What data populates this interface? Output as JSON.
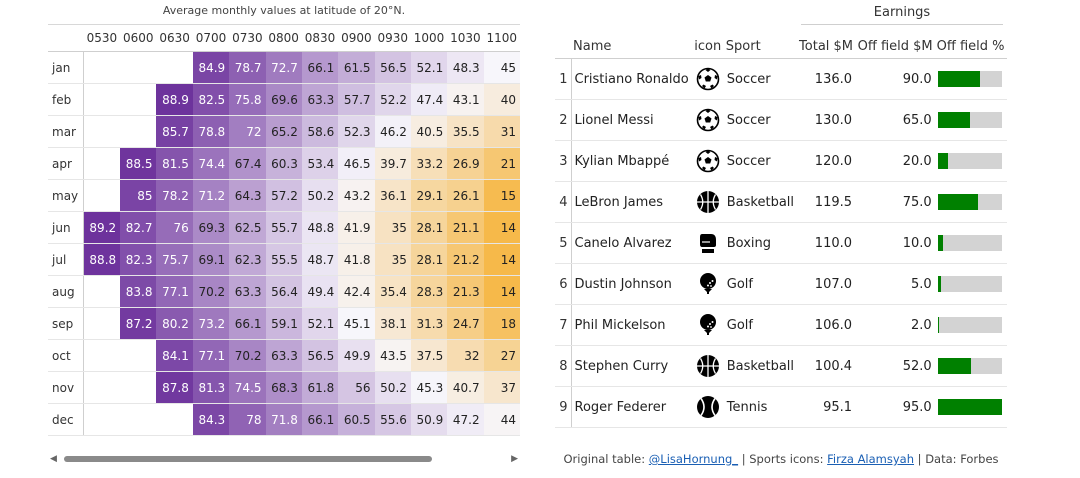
{
  "heatmap": {
    "title": "Average monthly values at latitude of 20°N.",
    "columns": [
      "0530",
      "0600",
      "0630",
      "0700",
      "0730",
      "0800",
      "0830",
      "0900",
      "0930",
      "1000",
      "1030",
      "1100"
    ],
    "rows": [
      {
        "month": "jan",
        "values": [
          null,
          null,
          null,
          84.9,
          78.7,
          72.7,
          66.1,
          61.5,
          56.5,
          52.1,
          48.3,
          45
        ]
      },
      {
        "month": "feb",
        "values": [
          null,
          null,
          88.9,
          82.5,
          75.8,
          69.6,
          63.3,
          57.7,
          52.2,
          47.4,
          43.1,
          40
        ]
      },
      {
        "month": "mar",
        "values": [
          null,
          null,
          85.7,
          78.8,
          72.0,
          65.2,
          58.6,
          52.3,
          46.2,
          40.5,
          35.5,
          31
        ]
      },
      {
        "month": "apr",
        "values": [
          null,
          88.5,
          81.5,
          74.4,
          67.4,
          60.3,
          53.4,
          46.5,
          39.7,
          33.2,
          26.9,
          21
        ]
      },
      {
        "month": "may",
        "values": [
          null,
          85.0,
          78.2,
          71.2,
          64.3,
          57.2,
          50.2,
          43.2,
          36.1,
          29.1,
          26.1,
          15
        ]
      },
      {
        "month": "jun",
        "values": [
          89.2,
          82.7,
          76.0,
          69.3,
          62.5,
          55.7,
          48.8,
          41.9,
          35.0,
          28.1,
          21.1,
          14
        ]
      },
      {
        "month": "jul",
        "values": [
          88.8,
          82.3,
          75.7,
          69.1,
          62.3,
          55.5,
          48.7,
          41.8,
          35.0,
          28.1,
          21.2,
          14
        ]
      },
      {
        "month": "aug",
        "values": [
          null,
          83.8,
          77.1,
          70.2,
          63.3,
          56.4,
          49.4,
          42.4,
          35.4,
          28.3,
          21.3,
          14
        ]
      },
      {
        "month": "sep",
        "values": [
          null,
          87.2,
          80.2,
          73.2,
          66.1,
          59.1,
          52.1,
          45.1,
          38.1,
          31.3,
          24.7,
          18
        ]
      },
      {
        "month": "oct",
        "values": [
          null,
          null,
          84.1,
          77.1,
          70.2,
          63.3,
          56.5,
          49.9,
          43.5,
          37.5,
          32.0,
          27
        ]
      },
      {
        "month": "nov",
        "values": [
          null,
          null,
          87.8,
          81.3,
          74.5,
          68.3,
          61.8,
          56.0,
          50.2,
          45.3,
          40.7,
          37
        ]
      },
      {
        "month": "dec",
        "values": [
          null,
          null,
          null,
          84.3,
          78.0,
          71.8,
          66.1,
          60.5,
          55.6,
          50.9,
          47.2,
          44
        ]
      }
    ],
    "scale": {
      "low_color": "#f6b94a",
      "mid_color": "#f7f6fb",
      "high_color": "#6a2e9a",
      "min": 14,
      "max": 90,
      "mid": 45
    }
  },
  "earnings_table": {
    "spanner_label": "Earnings",
    "headers": {
      "name": "Name",
      "icon": "icon",
      "sport": "Sport",
      "total": "Total $M",
      "off_field": "Off field $M",
      "off_pct": "Off field %"
    },
    "bar_color": "#008000",
    "bar_bg_color": "#d3d3d3",
    "rows": [
      {
        "idx": "1",
        "name": "Cristiano Ronaldo",
        "icon": "soccer-ball-icon",
        "sport": "Soccer",
        "total": "136.0",
        "off_field": "90.0",
        "pct": 0.662
      },
      {
        "idx": "2",
        "name": "Lionel Messi",
        "icon": "soccer-ball-icon",
        "sport": "Soccer",
        "total": "130.0",
        "off_field": "65.0",
        "pct": 0.5
      },
      {
        "idx": "3",
        "name": "Kylian Mbappé",
        "icon": "soccer-ball-icon",
        "sport": "Soccer",
        "total": "120.0",
        "off_field": "20.0",
        "pct": 0.167
      },
      {
        "idx": "4",
        "name": "LeBron James",
        "icon": "basketball-icon",
        "sport": "Basketball",
        "total": "119.5",
        "off_field": "75.0",
        "pct": 0.628
      },
      {
        "idx": "5",
        "name": "Canelo Alvarez",
        "icon": "boxing-glove-icon",
        "sport": "Boxing",
        "total": "110.0",
        "off_field": "10.0",
        "pct": 0.091
      },
      {
        "idx": "6",
        "name": "Dustin Johnson",
        "icon": "golf-ball-icon",
        "sport": "Golf",
        "total": "107.0",
        "off_field": "5.0",
        "pct": 0.047
      },
      {
        "idx": "7",
        "name": "Phil Mickelson",
        "icon": "golf-ball-icon",
        "sport": "Golf",
        "total": "106.0",
        "off_field": "2.0",
        "pct": 0.019
      },
      {
        "idx": "8",
        "name": "Stephen Curry",
        "icon": "basketball-icon",
        "sport": "Basketball",
        "total": "100.4",
        "off_field": "52.0",
        "pct": 0.518
      },
      {
        "idx": "9",
        "name": "Roger Federer",
        "icon": "tennis-ball-icon",
        "sport": "Tennis",
        "total": "95.1",
        "off_field": "95.0",
        "pct": 0.999
      }
    ],
    "footer": {
      "prefix": "Original table: ",
      "link1": "@LisaHornung_",
      "mid": " | Sports icons: ",
      "link2": "Firza Alamsyah",
      "suffix": " | Data: Forbes"
    }
  },
  "scrollbar": {
    "left_arrow": "◀",
    "right_arrow": "▶",
    "position": 0.0
  }
}
